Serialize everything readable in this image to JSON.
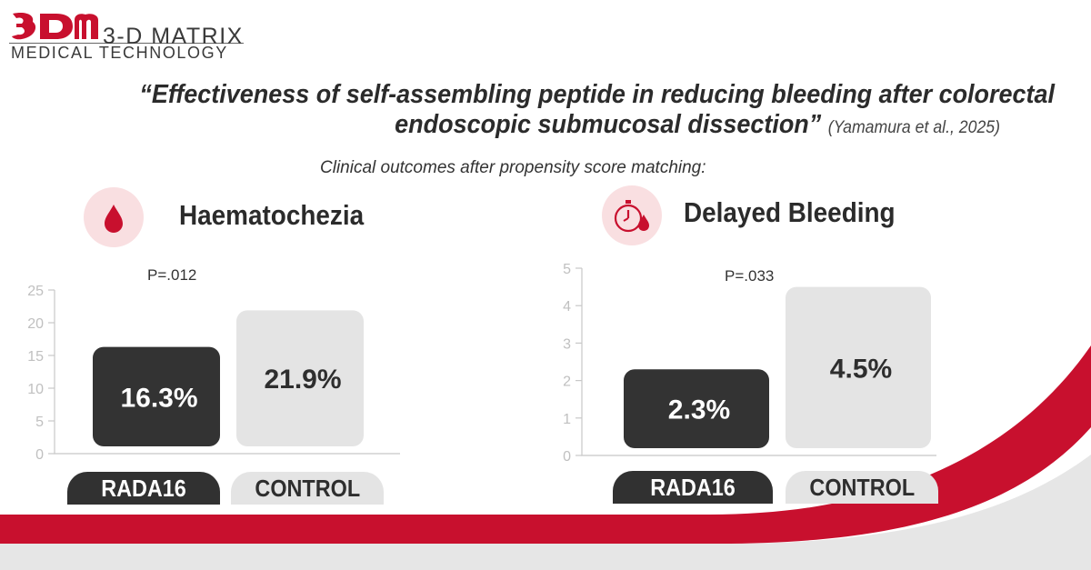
{
  "logo": {
    "brand_top": "3-D MATRIX",
    "brand_bottom": "MEDICAL TECHNOLOGY",
    "brand_color": "#c8102e"
  },
  "heading": {
    "line1": "“Effectiveness of self-assembling peptide in reducing bleeding after colorectal",
    "line2": "endoscopic submucosal dissection”",
    "citation": "(Yamamura et al., 2025)",
    "subtitle": "Clinical outcomes after propensity score matching:"
  },
  "colors": {
    "rada16": "#333333",
    "control": "#e4e4e4",
    "accent": "#c8102e",
    "icon_bg": "#f9dfe1"
  },
  "panels": [
    {
      "title": "Haematochezia",
      "icon": "blood-drop-icon",
      "p_value": "P=.012",
      "rada_tab": "RADA16",
      "control_tab": "CONTROL"
    },
    {
      "title": "Delayed Bleeding",
      "icon": "stopwatch-blood-drop-icon",
      "p_value": "P=.033",
      "rada_tab": "RADA16",
      "control_tab": "CONTROL"
    }
  ],
  "chart_data": [
    {
      "type": "bar",
      "title": "Haematochezia",
      "categories": [
        "RADA16",
        "CONTROL"
      ],
      "values": [
        16.3,
        21.9
      ],
      "value_labels": [
        "16.3%",
        "21.9%"
      ],
      "ylim": [
        0,
        25
      ],
      "yticks": [
        0,
        5,
        10,
        15,
        20,
        25
      ],
      "annotation": "P=.012",
      "xlabel": "",
      "ylabel": ""
    },
    {
      "type": "bar",
      "title": "Delayed Bleeding",
      "categories": [
        "RADA16",
        "CONTROL"
      ],
      "values": [
        2.3,
        4.5
      ],
      "value_labels": [
        "2.3%",
        "4.5%"
      ],
      "ylim": [
        0,
        5
      ],
      "yticks": [
        0,
        1,
        2,
        3,
        4,
        5
      ],
      "annotation": "P=.033",
      "xlabel": "",
      "ylabel": ""
    }
  ]
}
